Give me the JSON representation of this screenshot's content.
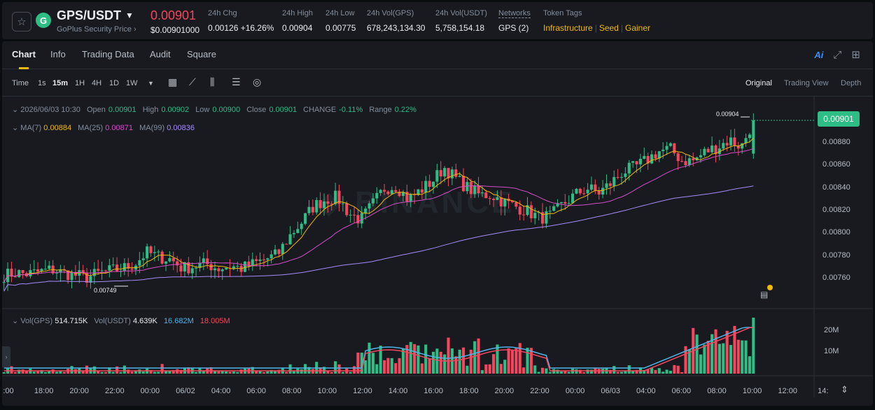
{
  "ticker": {
    "star_icon": "star-icon",
    "logo_letter": "G",
    "pair": "GPS/USDT",
    "security_label": "GoPlus Security Price",
    "security_arrow": "›",
    "last_price": "0.00901",
    "last_price_usd": "$0.00901000",
    "change_label": "24h Chg",
    "change_value": "0.00126",
    "change_pct": "+16.26%",
    "high_label": "24h High",
    "high_value": "0.00904",
    "low_label": "24h Low",
    "low_value": "0.00775",
    "vol_base_label": "24h Vol(GPS)",
    "vol_base_value": "678,243,134.30",
    "vol_quote_label": "24h Vol(USDT)",
    "vol_quote_value": "5,758,154.18",
    "networks_label": "Networks",
    "networks_value": "GPS (2)",
    "tags_label": "Token Tags",
    "tags": [
      "Infrastructure",
      "Seed",
      "Gainer"
    ]
  },
  "tabs": {
    "items": [
      "Chart",
      "Info",
      "Trading Data",
      "Audit",
      "Square"
    ],
    "active": "Chart",
    "ai_label": "Ai"
  },
  "toolbar": {
    "time_label": "Time",
    "intervals": [
      "1s",
      "15m",
      "1H",
      "4H",
      "1D",
      "1W"
    ],
    "active_interval": "15m",
    "views": [
      "Original",
      "Trading View",
      "Depth"
    ],
    "active_view": "Original"
  },
  "chart_data": {
    "type": "candlestick",
    "pair": "GPS/USDT",
    "interval": "15m",
    "ohlc_legend": {
      "time": "2026/06/03 10:30",
      "open_label": "Open",
      "open": "0.00901",
      "high_label": "High",
      "high": "0.00902",
      "low_label": "Low",
      "low": "0.00900",
      "close_label": "Close",
      "close": "0.00901",
      "change_label": "CHANGE",
      "change": "-0.11%",
      "range_label": "Range",
      "range": "0.22%"
    },
    "ma_legend": {
      "ma7_label": "MA(7)",
      "ma7": "0.00884",
      "ma25_label": "MA(25)",
      "ma25": "0.00871",
      "ma99_label": "MA(99)",
      "ma99": "0.00836"
    },
    "volume_legend": {
      "vol_base_label": "Vol(GPS)",
      "vol_base": "514.715K",
      "vol_quote_label": "Vol(USDT)",
      "vol_quote": "4.639K",
      "vol_ma1": "16.682M",
      "vol_ma2": "18.005M"
    },
    "current_price_tag": "0.00901",
    "high_annotation": "0.00904",
    "low_annotation": "0.00749",
    "y_ticks": [
      "0.00880",
      "0.00860",
      "0.00840",
      "0.00820",
      "0.00800",
      "0.00780",
      "0.00760"
    ],
    "y_range": [
      0.0074,
      0.00912
    ],
    "volume_ticks": [
      "20M",
      "10M"
    ],
    "x_ticks": [
      ":00",
      "18:00",
      "20:00",
      "22:00",
      "00:00",
      "06/02",
      "04:00",
      "06:00",
      "08:00",
      "10:00",
      "12:00",
      "14:00",
      "16:00",
      "18:00",
      "20:00",
      "22:00",
      "00:00",
      "06/03",
      "04:00",
      "06:00",
      "08:00",
      "10:00",
      "12:00",
      "14:"
    ],
    "close_path": [
      0.00766,
      0.00768,
      0.00767,
      0.00769,
      0.00771,
      0.00768,
      0.00766,
      0.00764,
      0.00768,
      0.0077,
      0.00772,
      0.00776,
      0.00786,
      0.00782,
      0.0078,
      0.00772,
      0.00774,
      0.00776,
      0.00772,
      0.00774,
      0.00772,
      0.00776,
      0.0078,
      0.00784,
      0.008,
      0.00812,
      0.00826,
      0.00832,
      0.00834,
      0.0082,
      0.00814,
      0.00828,
      0.00842,
      0.00844,
      0.00832,
      0.0084,
      0.00848,
      0.0086,
      0.0085,
      0.00842,
      0.00836,
      0.00836,
      0.0083,
      0.00826,
      0.00822,
      0.00816,
      0.00818,
      0.00828,
      0.00836,
      0.00842,
      0.00838,
      0.00846,
      0.00856,
      0.0086,
      0.00866,
      0.00874,
      0.00876,
      0.00866,
      0.00866,
      0.00874,
      0.00878,
      0.00884,
      0.00878,
      0.00901
    ],
    "colors": {
      "up": "#2ebd85",
      "down": "#f6465d",
      "ma7": "#f0b90b",
      "ma25": "#d64dc9",
      "ma99": "#a78bfa",
      "vol_ma1": "#4fb3e8",
      "vol_ma2": "#f6465d"
    }
  }
}
